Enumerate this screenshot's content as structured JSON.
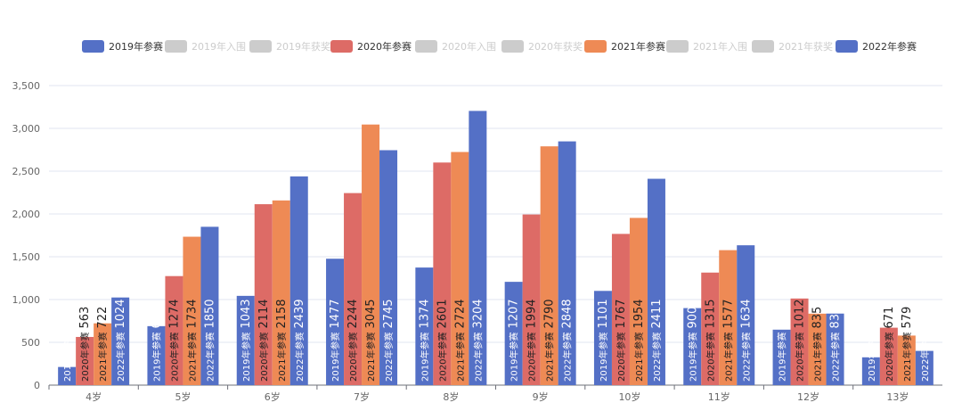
{
  "legend": [
    {
      "label": "2019年参赛",
      "color": "#5470c6",
      "active": true
    },
    {
      "label": "2019年入围",
      "color": "#cccccc",
      "active": false
    },
    {
      "label": "2019年获奖",
      "color": "#cccccc",
      "active": false
    },
    {
      "label": "2020年参赛",
      "color": "#dd6b66",
      "active": true
    },
    {
      "label": "2020年入围",
      "color": "#cccccc",
      "active": false
    },
    {
      "label": "2020年获奖",
      "color": "#cccccc",
      "active": false
    },
    {
      "label": "2021年参赛",
      "color": "#ee8a55",
      "active": true
    },
    {
      "label": "2021年入围",
      "color": "#cccccc",
      "active": false
    },
    {
      "label": "2021年获奖",
      "color": "#cccccc",
      "active": false
    },
    {
      "label": "2022年参赛",
      "color": "#5470c6",
      "active": true
    }
  ],
  "chart_data": {
    "type": "bar",
    "categories": [
      "4岁",
      "5岁",
      "6岁",
      "7岁",
      "8岁",
      "9岁",
      "10岁",
      "11岁",
      "12岁",
      "13岁"
    ],
    "series": [
      {
        "name": "2019年参赛",
        "color": "#5470c6",
        "values": [
          212,
          689,
          1043,
          1477,
          1374,
          1207,
          1101,
          900,
          648,
          325
        ]
      },
      {
        "name": "2020年参赛",
        "color": "#dd6b66",
        "values": [
          563,
          1274,
          2114,
          2244,
          2601,
          1994,
          1767,
          1315,
          1012,
          671
        ]
      },
      {
        "name": "2021年参赛",
        "color": "#ee8a55",
        "values": [
          722,
          1734,
          2158,
          3045,
          2724,
          2790,
          1954,
          1577,
          835,
          579
        ]
      },
      {
        "name": "2022年参赛",
        "color": "#5470c6",
        "values": [
          1024,
          1850,
          2439,
          2745,
          3204,
          2848,
          2411,
          1634,
          836,
          400
        ]
      }
    ],
    "ylim": [
      0,
      3500
    ],
    "yticks": [
      "0",
      "500",
      "1,000",
      "1,500",
      "2,000",
      "2,500",
      "3,000",
      "3,500"
    ],
    "grid": true,
    "legend_position": "top-right",
    "data_labels": "rotated, inside bars"
  }
}
